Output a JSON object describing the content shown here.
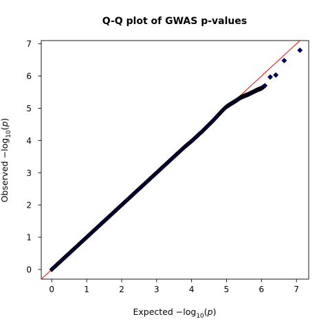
{
  "chart_data": {
    "type": "scatter",
    "title": "Q-Q plot of GWAS p-values",
    "xlabel": {
      "prefix": "Expected  −log",
      "sub": "10",
      "var": "p"
    },
    "ylabel": {
      "prefix": "Observed  −log",
      "sub": "10",
      "var": "p"
    },
    "xlim": [
      -0.3,
      7.35
    ],
    "ylim": [
      -0.3,
      7.1
    ],
    "x_ticks": [
      0,
      1,
      2,
      3,
      4,
      5,
      6,
      7
    ],
    "y_ticks": [
      0,
      1,
      2,
      3,
      4,
      5,
      6,
      7
    ],
    "x_tick_labels": [
      "0",
      "1",
      "2",
      "3",
      "4",
      "5",
      "6",
      "7"
    ],
    "y_tick_labels": [
      "0",
      "1",
      "2",
      "3",
      "4",
      "5",
      "6",
      "7"
    ],
    "grid": false,
    "legend": "none",
    "reference_line": {
      "slope": 1,
      "intercept": 0,
      "color": "#ff0000"
    },
    "marker": {
      "shape": "diamond",
      "fill": "#00008b",
      "edge": "#000000"
    },
    "curve": {
      "description": "dense run of points along y = x up to x ≈ 5, then bending below the line",
      "points": [
        [
          0.0,
          0.0
        ],
        [
          0.5,
          0.5
        ],
        [
          1.0,
          1.0
        ],
        [
          1.5,
          1.5
        ],
        [
          2.0,
          2.0
        ],
        [
          2.5,
          2.5
        ],
        [
          3.0,
          3.0
        ],
        [
          3.5,
          3.5
        ],
        [
          3.8,
          3.8
        ],
        [
          4.0,
          3.98
        ],
        [
          4.3,
          4.28
        ],
        [
          4.6,
          4.6
        ],
        [
          4.9,
          4.95
        ],
        [
          5.0,
          5.05
        ],
        [
          5.1,
          5.12
        ],
        [
          5.25,
          5.22
        ],
        [
          5.4,
          5.33
        ],
        [
          5.5,
          5.38
        ],
        [
          5.6,
          5.42
        ],
        [
          5.75,
          5.5
        ],
        [
          5.9,
          5.58
        ],
        [
          6.0,
          5.62
        ],
        [
          6.1,
          5.7
        ]
      ]
    },
    "outliers": [
      {
        "x": 6.25,
        "y": 5.97
      },
      {
        "x": 6.41,
        "y": 6.03
      },
      {
        "x": 6.65,
        "y": 6.48
      },
      {
        "x": 7.1,
        "y": 6.8
      }
    ]
  }
}
